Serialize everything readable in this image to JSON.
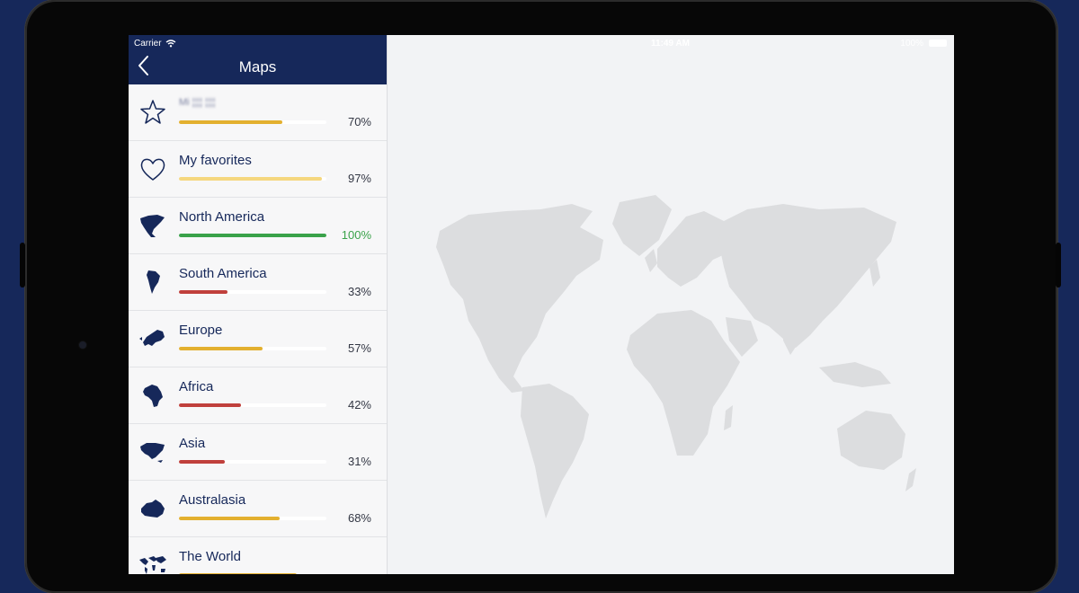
{
  "statusbar": {
    "carrier": "Carrier",
    "time": "11:49 AM",
    "battery": "100%"
  },
  "navbar": {
    "title": "Maps"
  },
  "list": [
    {
      "label": "Mi ¦¦¦¦ ¦¦¦¦",
      "progress": 0.7,
      "percent": "70%",
      "color": "#e3b02f",
      "icon": "star-icon",
      "blurred": true
    },
    {
      "label": "My favorites",
      "progress": 0.97,
      "percent": "97%",
      "color": "#f5d77e",
      "icon": "heart-icon"
    },
    {
      "label": "North America",
      "progress": 1.0,
      "percent": "100%",
      "color": "#3aa24a",
      "icon": "north-america-icon",
      "percent_color": "#3aa24a"
    },
    {
      "label": "South America",
      "progress": 0.33,
      "percent": "33%",
      "color": "#c0403c",
      "icon": "south-america-icon"
    },
    {
      "label": "Europe",
      "progress": 0.57,
      "percent": "57%",
      "color": "#e3b02f",
      "icon": "europe-icon"
    },
    {
      "label": "Africa",
      "progress": 0.42,
      "percent": "42%",
      "color": "#c0403c",
      "icon": "africa-icon"
    },
    {
      "label": "Asia",
      "progress": 0.31,
      "percent": "31%",
      "color": "#c0403c",
      "icon": "asia-icon"
    },
    {
      "label": "Australasia",
      "progress": 0.68,
      "percent": "68%",
      "color": "#e3b02f",
      "icon": "australia-icon"
    },
    {
      "label": "The World",
      "progress": 0.8,
      "percent": "",
      "color": "#e3b02f",
      "icon": "world-icon"
    }
  ],
  "colors": {
    "navbar": "#16285a",
    "text": "#16285a",
    "map_land": "#dcdddf",
    "background": "#16285a"
  }
}
